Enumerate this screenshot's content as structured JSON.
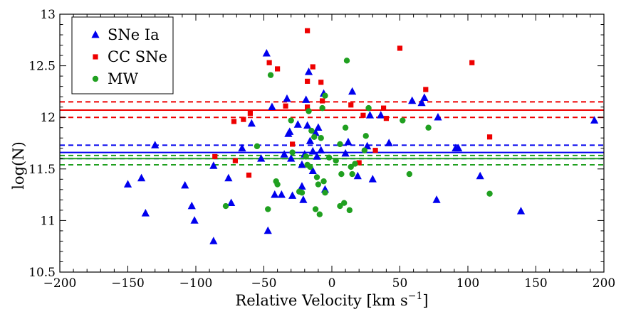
{
  "chart_data": {
    "type": "scatter",
    "title": "",
    "xlabel": "Relative Velocity [km s",
    "xlabel_sup": "−1",
    "xlabel_close": "]",
    "ylabel": "log(N)",
    "xlim": [
      -200,
      200
    ],
    "ylim": [
      10.5,
      13
    ],
    "x_ticks": [
      -200,
      -150,
      -100,
      -50,
      0,
      50,
      100,
      150,
      200
    ],
    "x_tick_labels": [
      "−200",
      "−150",
      "−100",
      "−50",
      "0",
      "50",
      "100",
      "150",
      "200"
    ],
    "y_ticks": [
      10.5,
      11,
      11.5,
      12,
      12.5,
      13
    ],
    "y_tick_labels": [
      "10.5",
      "11",
      "11.5",
      "12",
      "12.5",
      "13"
    ],
    "legend_position": "top-left",
    "series": [
      {
        "name": "SNe Ia",
        "marker": "triangle",
        "color": "#0000ee",
        "mean": 11.66,
        "band": [
          11.6,
          11.73
        ],
        "points": [
          [
            -150,
            11.35
          ],
          [
            -140,
            11.41
          ],
          [
            -137,
            11.07
          ],
          [
            -130,
            11.73
          ],
          [
            -108,
            11.34
          ],
          [
            -103,
            11.14
          ],
          [
            -101,
            11.0
          ],
          [
            -87,
            10.8
          ],
          [
            -87,
            11.53
          ],
          [
            -76,
            11.41
          ],
          [
            -74,
            11.17
          ],
          [
            -66,
            11.7
          ],
          [
            -59,
            11.94
          ],
          [
            -52,
            11.6
          ],
          [
            -48,
            12.62
          ],
          [
            -47,
            10.9
          ],
          [
            -44,
            12.1
          ],
          [
            -42,
            11.25
          ],
          [
            -37,
            11.25
          ],
          [
            -33,
            12.18
          ],
          [
            -32,
            11.84
          ],
          [
            -31,
            11.86
          ],
          [
            -30,
            11.6
          ],
          [
            -29,
            11.24
          ],
          [
            -25,
            11.93
          ],
          [
            -22,
            11.54
          ],
          [
            -21,
            11.2
          ],
          [
            -19,
            12.17
          ],
          [
            -17,
            12.44
          ],
          [
            -14,
            11.67
          ],
          [
            -14,
            11.48
          ],
          [
            -12,
            11.85
          ],
          [
            -11,
            11.62
          ],
          [
            -10,
            11.9
          ],
          [
            -6,
            12.23
          ],
          [
            -5,
            11.3
          ],
          [
            -20,
            11.64
          ],
          [
            -22,
            11.33
          ],
          [
            -18,
            11.92
          ],
          [
            -35,
            11.64
          ],
          [
            -16,
            11.77
          ],
          [
            -8,
            11.68
          ],
          [
            10,
            11.65
          ],
          [
            12,
            11.76
          ],
          [
            15,
            12.25
          ],
          [
            19,
            11.43
          ],
          [
            26,
            11.72
          ],
          [
            28,
            12.02
          ],
          [
            30,
            11.4
          ],
          [
            36,
            12.02
          ],
          [
            42,
            11.75
          ],
          [
            59,
            12.16
          ],
          [
            66,
            12.14
          ],
          [
            68,
            12.19
          ],
          [
            77,
            11.2
          ],
          [
            78,
            12.0
          ],
          [
            91,
            11.7
          ],
          [
            93,
            11.7
          ],
          [
            109,
            11.43
          ],
          [
            139,
            11.09
          ],
          [
            193,
            11.97
          ]
        ]
      },
      {
        "name": "CC SNe",
        "marker": "square",
        "color": "#ee0000",
        "mean": 12.07,
        "band": [
          12.0,
          12.15
        ],
        "points": [
          [
            -86,
            11.62
          ],
          [
            -72,
            11.96
          ],
          [
            -71,
            11.58
          ],
          [
            -65,
            11.98
          ],
          [
            -61,
            11.44
          ],
          [
            -60,
            12.04
          ],
          [
            -46,
            12.53
          ],
          [
            -40,
            12.47
          ],
          [
            -34,
            12.11
          ],
          [
            -29,
            11.74
          ],
          [
            -18,
            12.84
          ],
          [
            -18,
            12.35
          ],
          [
            -18,
            12.1
          ],
          [
            -14,
            12.49
          ],
          [
            -8,
            12.34
          ],
          [
            -7,
            12.16
          ],
          [
            14,
            12.12
          ],
          [
            20,
            11.56
          ],
          [
            23,
            12.02
          ],
          [
            32,
            11.68
          ],
          [
            38,
            12.09
          ],
          [
            40,
            11.99
          ],
          [
            50,
            12.67
          ],
          [
            69,
            12.27
          ],
          [
            103,
            12.53
          ],
          [
            116,
            11.81
          ]
        ]
      },
      {
        "name": "MW",
        "marker": "circle",
        "color": "#20a020",
        "mean": 11.6,
        "band": [
          11.54,
          11.63
        ],
        "points": [
          [
            -78,
            11.14
          ],
          [
            -55,
            11.72
          ],
          [
            -47,
            11.11
          ],
          [
            -45,
            12.41
          ],
          [
            -41,
            11.38
          ],
          [
            -40,
            11.35
          ],
          [
            -30,
            11.97
          ],
          [
            -29,
            11.66
          ],
          [
            -24,
            11.28
          ],
          [
            -22,
            11.27
          ],
          [
            -19,
            11.62
          ],
          [
            -18,
            11.54
          ],
          [
            -17,
            12.06
          ],
          [
            -16,
            11.52
          ],
          [
            -15,
            11.87
          ],
          [
            -13,
            11.81
          ],
          [
            -12,
            11.11
          ],
          [
            -11,
            11.42
          ],
          [
            -10,
            11.35
          ],
          [
            -9,
            11.06
          ],
          [
            -8,
            11.8
          ],
          [
            -7,
            12.09
          ],
          [
            -6,
            11.38
          ],
          [
            -5,
            12.21
          ],
          [
            -5,
            11.27
          ],
          [
            6,
            11.74
          ],
          [
            6,
            11.14
          ],
          [
            7,
            11.45
          ],
          [
            9,
            11.17
          ],
          [
            10,
            11.9
          ],
          [
            11,
            12.55
          ],
          [
            13,
            11.1
          ],
          [
            14,
            11.52
          ],
          [
            15,
            11.45
          ],
          [
            17,
            11.55
          ],
          [
            24,
            11.68
          ],
          [
            25,
            11.82
          ],
          [
            27,
            12.09
          ],
          [
            52,
            11.97
          ],
          [
            57,
            11.45
          ],
          [
            71,
            11.9
          ],
          [
            116,
            11.26
          ],
          [
            3,
            11.58
          ],
          [
            -2,
            11.61
          ]
        ]
      }
    ]
  }
}
